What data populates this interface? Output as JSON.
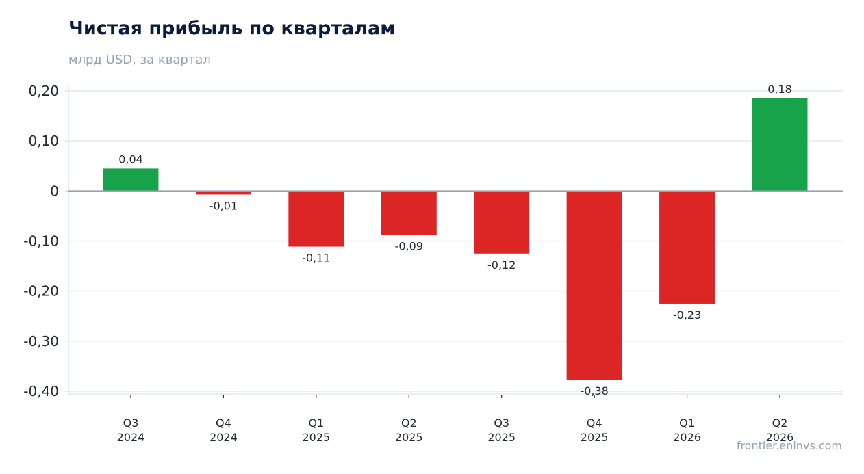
{
  "title": "Чистая прибыль по кварталам",
  "subtitle": "млрд USD, за квартал",
  "source": "frontier.eninvs.com",
  "colors": {
    "positive": "#17a34a",
    "negative": "#dc2626",
    "grid": "#e2e8f0",
    "zero": "#94a3b8"
  },
  "chart_data": {
    "type": "bar",
    "categories": [
      [
        "Q3",
        "2024"
      ],
      [
        "Q4",
        "2024"
      ],
      [
        "Q1",
        "2025"
      ],
      [
        "Q2",
        "2025"
      ],
      [
        "Q3",
        "2025"
      ],
      [
        "Q4",
        "2025"
      ],
      [
        "Q1",
        "2026"
      ],
      [
        "Q2",
        "2026"
      ]
    ],
    "values": [
      0.045,
      -0.007,
      -0.111,
      -0.088,
      -0.125,
      -0.377,
      -0.225,
      0.185
    ],
    "data_labels": [
      "0,04",
      "-0,01",
      "-0,11",
      "-0,09",
      "-0,12",
      "-0,38",
      "-0,23",
      "0,18"
    ],
    "ylim": [
      -0.4,
      0.2
    ],
    "yticks": [
      0.2,
      0.1,
      0,
      -0.1,
      -0.2,
      -0.3,
      -0.4
    ],
    "ytick_labels": [
      "0,20",
      "0,10",
      "0",
      "-0,10",
      "-0,20",
      "-0,30",
      "-0,40"
    ],
    "grid": true
  }
}
